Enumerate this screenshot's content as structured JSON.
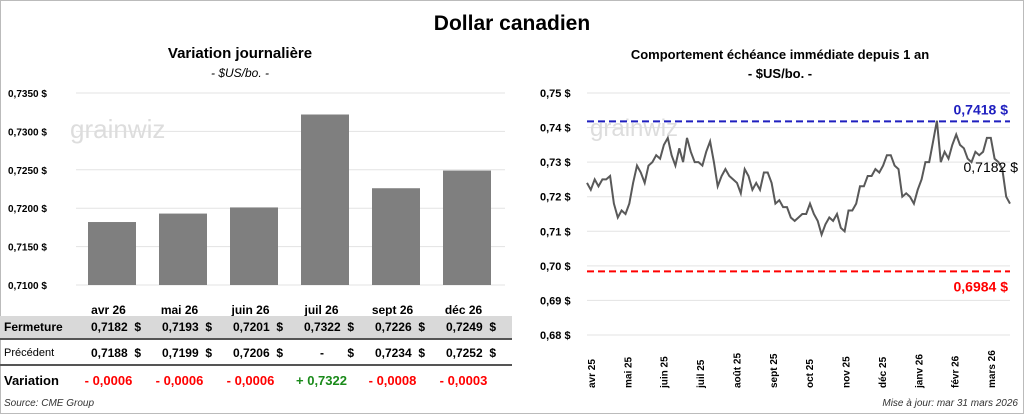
{
  "title": "Dollar canadien",
  "left": {
    "title": "Variation  journalière",
    "subtitle": "- $US/bo. -"
  },
  "right": {
    "title": "Comportement échéance immédiate depuis 1 an",
    "subtitle": "- $US/bo. -"
  },
  "watermark": "grainwiz",
  "table": {
    "months": [
      "avr 26",
      "mai 26",
      "juin 26",
      "juil 26",
      "sept 26",
      "déc 26"
    ],
    "rows": [
      {
        "label": "Fermeture",
        "values": [
          "0,7182  $",
          "0,7193  $",
          "0,7201  $",
          "0,7322  $",
          "0,7226  $",
          "0,7249  $"
        ]
      },
      {
        "label": "Précédent",
        "values": [
          "0,7188  $",
          "0,7199  $",
          "0,7206  $",
          "-       $",
          "0,7234  $",
          "0,7252  $"
        ]
      },
      {
        "label": "Variation",
        "values": [
          "- 0,0006",
          "- 0,0006",
          "- 0,0006",
          "+ 0,7322",
          "- 0,0008",
          "- 0,0003"
        ],
        "colors": [
          "#ff0000",
          "#ff0000",
          "#ff0000",
          "#1a8a1a",
          "#ff0000",
          "#ff0000"
        ]
      }
    ]
  },
  "source": "Source: CME Group",
  "updated": "Mise à jour: mar 31 mars 2026",
  "chart_data": [
    {
      "type": "bar",
      "categories": [
        "avr 26",
        "mai 26",
        "juin 26",
        "juil 26",
        "sept 26",
        "déc 26"
      ],
      "values": [
        0.7182,
        0.7193,
        0.7201,
        0.7322,
        0.7226,
        0.7249
      ],
      "ylim": [
        0.71,
        0.735
      ],
      "yticks": [
        "0,7100 $",
        "0,7150 $",
        "0,7200 $",
        "0,7250 $",
        "0,7300 $",
        "0,7350 $"
      ],
      "color": "#7f7f7f"
    },
    {
      "type": "line",
      "ylim": [
        0.68,
        0.75
      ],
      "yticks": [
        "0,68 $",
        "0,69 $",
        "0,70 $",
        "0,71 $",
        "0,72 $",
        "0,73 $",
        "0,74 $",
        "0,75 $"
      ],
      "xticks": [
        "avr 25",
        "mai 25",
        "juin 25",
        "juil 25",
        "août 25",
        "sept 25",
        "oct 25",
        "nov 25",
        "déc 25",
        "janv 26",
        "févr 26",
        "mars 26"
      ],
      "values": [
        0.724,
        0.722,
        0.725,
        0.723,
        0.725,
        0.725,
        0.726,
        0.718,
        0.714,
        0.716,
        0.715,
        0.718,
        0.724,
        0.729,
        0.727,
        0.724,
        0.729,
        0.73,
        0.732,
        0.731,
        0.735,
        0.737,
        0.732,
        0.729,
        0.734,
        0.73,
        0.737,
        0.733,
        0.73,
        0.73,
        0.729,
        0.733,
        0.736,
        0.73,
        0.723,
        0.726,
        0.728,
        0.726,
        0.725,
        0.724,
        0.721,
        0.728,
        0.726,
        0.722,
        0.724,
        0.722,
        0.727,
        0.727,
        0.724,
        0.718,
        0.719,
        0.717,
        0.717,
        0.714,
        0.713,
        0.714,
        0.715,
        0.715,
        0.718,
        0.715,
        0.713,
        0.709,
        0.712,
        0.714,
        0.713,
        0.715,
        0.711,
        0.71,
        0.716,
        0.716,
        0.718,
        0.723,
        0.723,
        0.726,
        0.726,
        0.728,
        0.727,
        0.729,
        0.732,
        0.732,
        0.729,
        0.728,
        0.72,
        0.721,
        0.72,
        0.718,
        0.722,
        0.725,
        0.73,
        0.73,
        0.736,
        0.742,
        0.73,
        0.733,
        0.731,
        0.735,
        0.738,
        0.735,
        0.734,
        0.731,
        0.73,
        0.733,
        0.732,
        0.733,
        0.737,
        0.737,
        0.731,
        0.73,
        0.728,
        0.72,
        0.718
      ],
      "max": {
        "value": 0.7418,
        "label": "0,7418  $",
        "color": "#1f1fbf"
      },
      "min": {
        "value": 0.6984,
        "label": "0,6984  $",
        "color": "#ff0000"
      },
      "last": {
        "value": 0.7182,
        "label": "0,7182 $"
      },
      "color": "#595959"
    }
  ]
}
